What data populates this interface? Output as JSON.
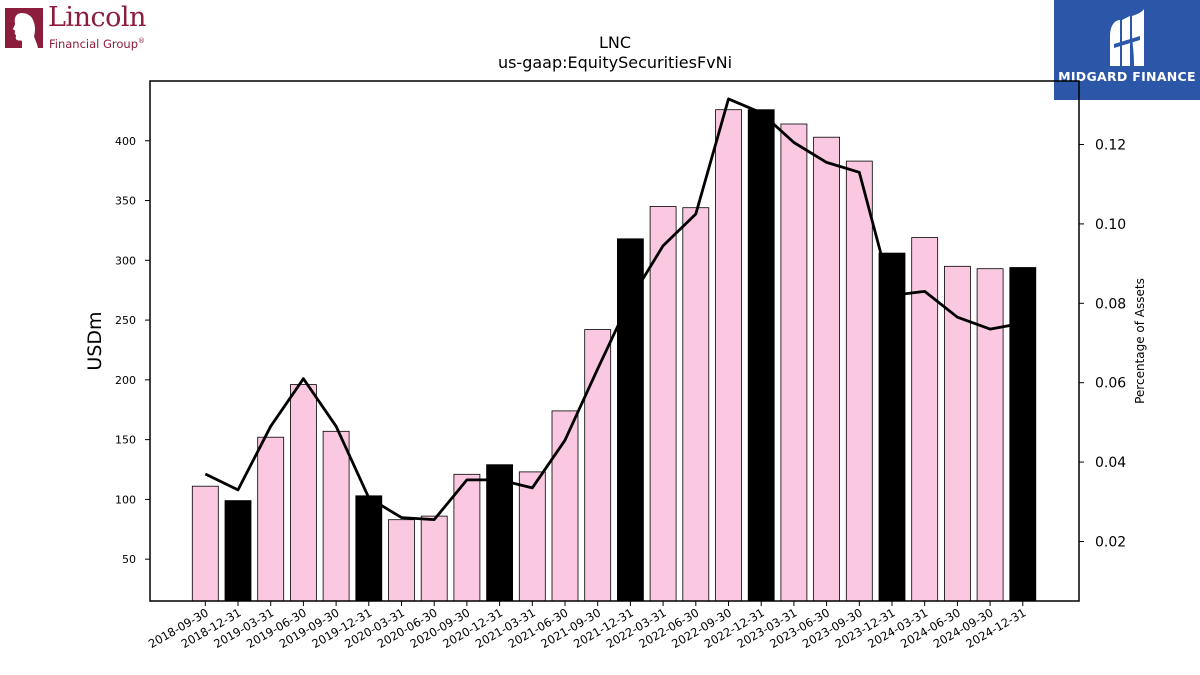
{
  "company_logo": {
    "name": "Lincoln",
    "tagline": "Financial Group",
    "trademark": "®",
    "color": "#8c1d3d"
  },
  "brand_logo": {
    "name": "MIDGARD FINANCE",
    "background": "#2c56a8"
  },
  "chart_data": {
    "type": "bar",
    "title": "LNC",
    "subtitle": "us-gaap:EquitySecuritiesFvNi",
    "ylabel": "USDm",
    "y2label": "Percentage of Assets",
    "ylim": [
      15,
      450
    ],
    "y2lim": [
      0.005,
      0.136
    ],
    "yticks": [
      50,
      100,
      150,
      200,
      250,
      300,
      350,
      400
    ],
    "y2ticks": [
      0.02,
      0.04,
      0.06,
      0.08,
      0.1,
      0.12
    ],
    "y2tick_labels": [
      "0.02",
      "0.04",
      "0.06",
      "0.08",
      "0.10",
      "0.12"
    ],
    "categories": [
      "2018-09-30",
      "2018-12-31",
      "2019-03-31",
      "2019-06-30",
      "2019-09-30",
      "2019-12-31",
      "2020-03-31",
      "2020-06-30",
      "2020-09-30",
      "2020-12-31",
      "2021-03-31",
      "2021-06-30",
      "2021-09-30",
      "2021-12-31",
      "2022-03-31",
      "2022-06-30",
      "2022-09-30",
      "2022-12-31",
      "2023-03-31",
      "2023-06-30",
      "2023-09-30",
      "2023-12-31",
      "2024-03-31",
      "2024-06-30",
      "2024-09-30",
      "2024-12-31"
    ],
    "values": [
      111,
      99,
      152,
      196,
      157,
      103,
      83,
      86,
      121,
      129,
      123,
      174,
      242,
      318,
      345,
      344,
      426,
      426,
      414,
      403,
      383,
      306,
      319,
      295,
      293,
      294
    ],
    "year_end_highlight": [
      false,
      true,
      false,
      false,
      false,
      true,
      false,
      false,
      false,
      true,
      false,
      false,
      false,
      true,
      false,
      false,
      false,
      true,
      false,
      false,
      false,
      true,
      false,
      false,
      false,
      true
    ],
    "line_series": {
      "values": [
        0.037,
        0.033,
        0.049,
        0.061,
        0.049,
        0.031,
        0.026,
        0.0255,
        0.0355,
        0.0355,
        0.0335,
        0.0455,
        0.0635,
        0.081,
        0.0945,
        0.1025,
        0.1315,
        0.128,
        0.1205,
        0.1155,
        0.113,
        0.082,
        0.083,
        0.0765,
        0.0735,
        0.075
      ]
    },
    "colors": {
      "bar": "#fbc8e2",
      "bar_year_end": "#000000",
      "bar_edge": "#000000",
      "line": "#000000"
    },
    "grid": false,
    "legend": "none"
  }
}
